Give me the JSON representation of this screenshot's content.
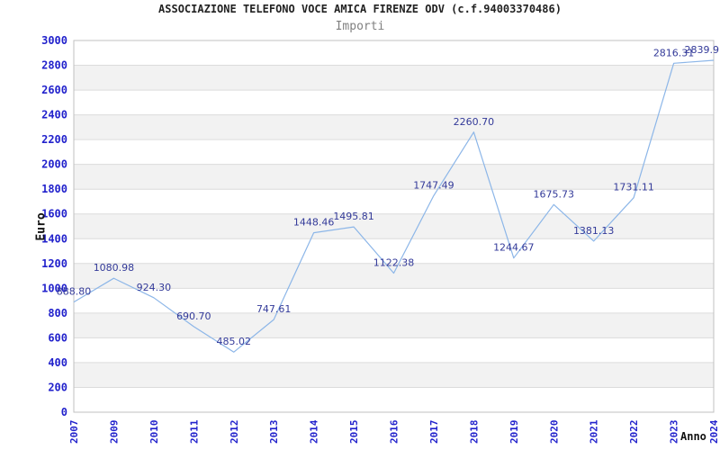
{
  "chart_data": {
    "type": "line",
    "title": "ASSOCIAZIONE TELEFONO VOCE AMICA FIRENZE ODV (c.f.94003370486)",
    "subtitle": "Importi",
    "xlabel": "Anno",
    "ylabel": "Euro",
    "categories": [
      "2007",
      "2009",
      "2010",
      "2011",
      "2012",
      "2013",
      "2014",
      "2015",
      "2016",
      "2017",
      "2018",
      "2019",
      "2020",
      "2021",
      "2022",
      "2023",
      "2024"
    ],
    "values": [
      888.8,
      1080.98,
      924.3,
      690.7,
      485.02,
      747.61,
      1448.46,
      1495.81,
      1122.38,
      1747.49,
      2260.7,
      1244.67,
      1675.73,
      1381.13,
      1731.11,
      2816.31,
      2839.9
    ],
    "point_labels": [
      "888.80",
      "1080.98",
      "924.30",
      "690.70",
      "485.02",
      "747.61",
      "1448.46",
      "1495.81",
      "1122.38",
      "1747.49",
      "2260.70",
      "1244.67",
      "1675.73",
      "1381.13",
      "1731.11",
      "2816.31",
      "2839.9"
    ],
    "ylim": [
      0,
      3000
    ],
    "ytick_step": 200,
    "grid": true,
    "alternating_row_bands": true,
    "legend_position": "none",
    "x_labels_rotation_deg": -90,
    "colors": {
      "line": "#8cb6e8",
      "tick_label": "#2222cc",
      "point_label": "#333a99",
      "band": "#f2f2f2",
      "grid": "#dcdcdc",
      "plot_border": "#c0c0c0",
      "title": "#222222",
      "subtitle": "#808080",
      "axis_title": "#111111",
      "background": "#ffffff"
    }
  }
}
